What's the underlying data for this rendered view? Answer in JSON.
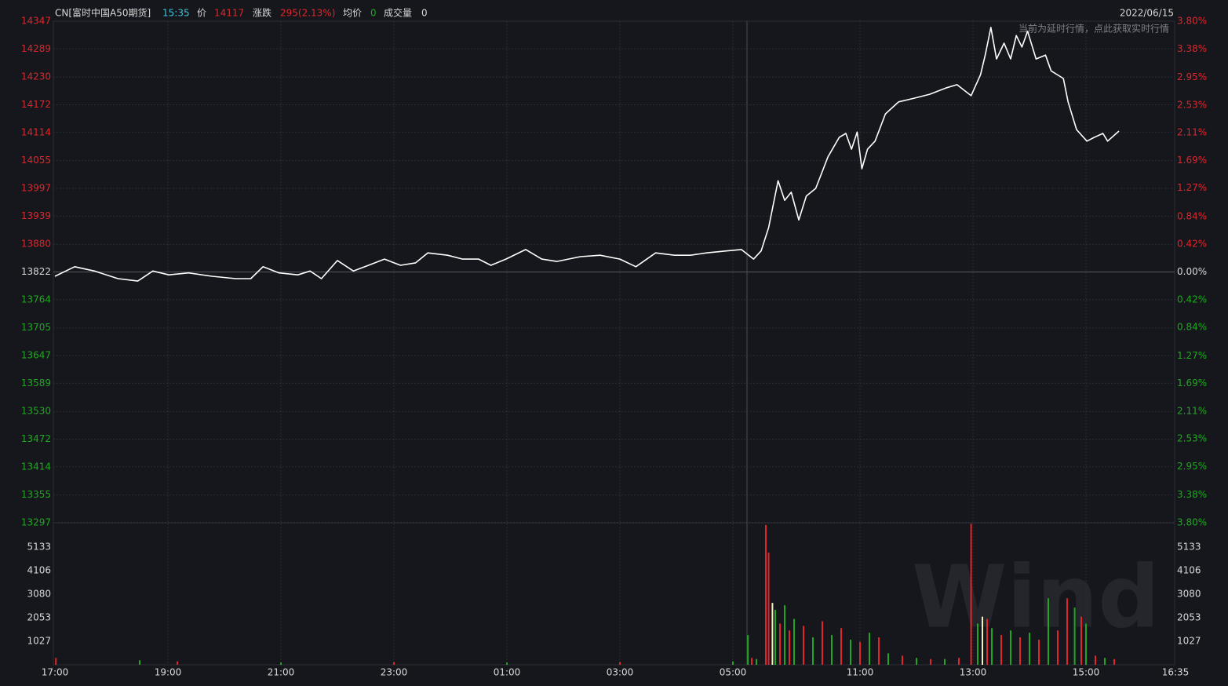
{
  "header": {
    "name": "CN[富时中国A50期货]",
    "time": "15:35",
    "price_label": "价",
    "price": 14117,
    "change_label": "涨跌",
    "change": "295(2.13%)",
    "avg_label": "均价",
    "avg": 0,
    "volume_label": "成交量",
    "volume": 0,
    "date": "2022/06/15",
    "notice": "当前为延时行情，点此获取实时行情",
    "watermark": "Wind"
  },
  "chart_data": [
    {
      "type": "line",
      "color": "#ffffff",
      "grid": true,
      "x": [
        "17:00",
        "17:21",
        "17:42",
        "18:07",
        "18:28",
        "18:44",
        "19:01",
        "19:22",
        "19:47",
        "20:12",
        "20:28",
        "20:41",
        "20:58",
        "21:18",
        "21:31",
        "21:43",
        "22:00",
        "22:17",
        "22:33",
        "22:50",
        "23:07",
        "23:23",
        "23:36",
        "23:57",
        "00:13",
        "00:30",
        "00:43",
        "00:59",
        "01:20",
        "01:37",
        "01:53",
        "02:18",
        "02:39",
        "03:00",
        "03:17",
        "03:38",
        "03:58",
        "04:15",
        "04:32",
        "04:53",
        "05:09",
        "09:07",
        "09:15",
        "09:23",
        "09:33",
        "09:40",
        "09:47",
        "09:55",
        "10:03",
        "10:13",
        "10:26",
        "10:38",
        "10:45",
        "10:51",
        "10:57",
        "11:02",
        "11:08",
        "11:16",
        "11:27",
        "11:41",
        "11:58",
        "12:14",
        "12:31",
        "12:43",
        "12:58",
        "13:08",
        "13:13",
        "13:19",
        "13:25",
        "13:33",
        "13:40",
        "13:46",
        "13:52",
        "13:58",
        "14:07",
        "14:17",
        "14:23",
        "14:36",
        "14:41",
        "14:50",
        "15:01",
        "15:09",
        "15:18",
        "15:23",
        "15:35"
      ],
      "values": [
        13813,
        13833,
        13824,
        13808,
        13803,
        13824,
        13816,
        13820,
        13813,
        13808,
        13808,
        13833,
        13820,
        13816,
        13824,
        13808,
        13846,
        13824,
        13836,
        13849,
        13836,
        13841,
        13862,
        13857,
        13849,
        13849,
        13836,
        13849,
        13869,
        13849,
        13844,
        13854,
        13857,
        13849,
        13833,
        13862,
        13857,
        13857,
        13862,
        13866,
        13869,
        13849,
        13866,
        13915,
        14013,
        13972,
        13989,
        13931,
        13981,
        13997,
        14063,
        14104,
        14112,
        14079,
        14115,
        14038,
        14079,
        14096,
        14153,
        14178,
        14186,
        14194,
        14207,
        14214,
        14191,
        14235,
        14276,
        14334,
        14268,
        14301,
        14268,
        14317,
        14293,
        14326,
        14268,
        14276,
        14243,
        14227,
        14178,
        14120,
        14096,
        14104,
        14112,
        14096,
        14117
      ],
      "ylim": [
        13297,
        14347
      ],
      "yticks": [
        14347,
        14289,
        14230,
        14172,
        14114,
        14055,
        13997,
        13939,
        13880,
        13822,
        13764,
        13705,
        13647,
        13589,
        13530,
        13472,
        13414,
        13355,
        13297
      ],
      "y2lim": [
        -3.8,
        3.8
      ],
      "y2ticks": [
        {
          "value": 3.8,
          "label": "3.80%"
        },
        {
          "value": 3.38,
          "label": "3.38%"
        },
        {
          "value": 2.95,
          "label": "2.95%"
        },
        {
          "value": 2.53,
          "label": "2.53%"
        },
        {
          "value": 2.11,
          "label": "2.11%"
        },
        {
          "value": 1.69,
          "label": "1.69%"
        },
        {
          "value": 1.27,
          "label": "1.27%"
        },
        {
          "value": 0.84,
          "label": "0.84%"
        },
        {
          "value": 0.42,
          "label": "0.42%"
        },
        {
          "value": 0,
          "label": "0.00%"
        },
        {
          "value": -0.42,
          "label": "0.42%"
        },
        {
          "value": -0.84,
          "label": "0.84%"
        },
        {
          "value": -1.27,
          "label": "1.27%"
        },
        {
          "value": -1.69,
          "label": "1.69%"
        },
        {
          "value": -2.11,
          "label": "2.11%"
        },
        {
          "value": -2.53,
          "label": "2.53%"
        },
        {
          "value": -2.95,
          "label": "2.95%"
        },
        {
          "value": -3.38,
          "label": "3.38%"
        },
        {
          "value": -3.8,
          "label": "3.80%"
        }
      ],
      "xticks": [
        "17:00",
        "19:00",
        "21:00",
        "23:00",
        "01:00",
        "03:00",
        "05:00",
        "11:00",
        "13:00",
        "15:00",
        "16:35"
      ]
    },
    {
      "type": "bar",
      "x": [
        "17:01",
        "18:30",
        "19:10",
        "21:00",
        "23:00",
        "01:00",
        "03:00",
        "05:00",
        "09:01",
        "09:05",
        "09:10",
        "09:20",
        "09:23",
        "09:27",
        "09:30",
        "09:35",
        "09:40",
        "09:45",
        "09:50",
        "10:00",
        "10:10",
        "10:20",
        "10:30",
        "10:40",
        "10:50",
        "11:00",
        "11:10",
        "11:20",
        "11:30",
        "11:45",
        "12:00",
        "12:15",
        "12:30",
        "12:45",
        "12:58",
        "13:05",
        "13:10",
        "13:15",
        "13:20",
        "13:30",
        "13:40",
        "13:50",
        "14:00",
        "14:10",
        "14:20",
        "14:30",
        "14:40",
        "14:48",
        "14:55",
        "15:00",
        "15:10",
        "15:20",
        "15:30"
      ],
      "values": [
        300,
        200,
        150,
        100,
        120,
        100,
        120,
        150,
        1300,
        300,
        250,
        6100,
        4900,
        2700,
        2400,
        1800,
        2600,
        1500,
        2000,
        1700,
        1200,
        1900,
        1300,
        1600,
        1100,
        1000,
        1400,
        1200,
        500,
        400,
        300,
        250,
        250,
        300,
        6150,
        1800,
        2100,
        2000,
        1600,
        1300,
        1500,
        1200,
        1400,
        1100,
        2900,
        1500,
        2900,
        2500,
        2100,
        1800,
        400,
        300,
        250
      ],
      "colors": [
        "#e0262b",
        "#1fa81f",
        "#e0262b",
        "#1fa81f",
        "#e0262b",
        "#1fa81f",
        "#e0262b",
        "#1fa81f",
        "#1fa81f",
        "#e0262b",
        "#1fa81f",
        "#e0262b",
        "#e0262b",
        "#f0f0c0",
        "#1fa81f",
        "#e0262b",
        "#1fa81f",
        "#e0262b",
        "#1fa81f",
        "#e0262b",
        "#1fa81f",
        "#e0262b",
        "#1fa81f",
        "#e0262b",
        "#1fa81f",
        "#e0262b",
        "#1fa81f",
        "#e0262b",
        "#1fa81f",
        "#e0262b",
        "#1fa81f",
        "#e0262b",
        "#1fa81f",
        "#e0262b",
        "#e0262b",
        "#1fa81f",
        "#f0f0c0",
        "#e0262b",
        "#1fa81f",
        "#e0262b",
        "#1fa81f",
        "#e0262b",
        "#1fa81f",
        "#e0262b",
        "#1fa81f",
        "#e0262b",
        "#e0262b",
        "#1fa81f",
        "#e0262b",
        "#1fa81f",
        "#e0262b",
        "#1fa81f",
        "#e0262b"
      ],
      "ylim": [
        0,
        6197
      ],
      "yticks": [
        1027,
        2053,
        3080,
        4106,
        5133
      ]
    }
  ]
}
